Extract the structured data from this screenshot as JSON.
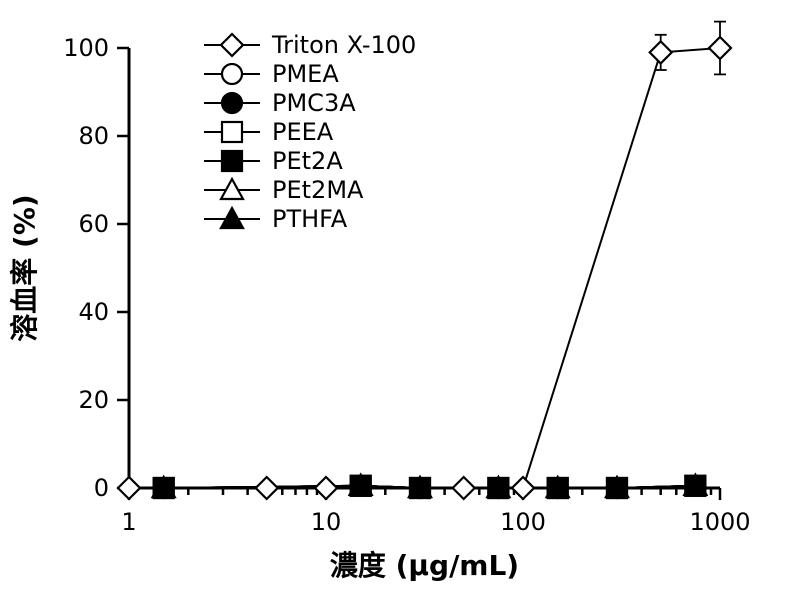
{
  "chart_data": {
    "type": "line",
    "xlabel": "濃度 (μg/mL)",
    "ylabel": "溶血率 (%)",
    "xscale": "log",
    "xlim": [
      1,
      1000
    ],
    "ylim": [
      0,
      100
    ],
    "x_ticks": [
      1,
      10,
      100,
      1000
    ],
    "y_ticks": [
      0,
      20,
      40,
      60,
      80,
      100
    ],
    "legend_position": "top-left",
    "grid": false,
    "series": [
      {
        "name": "Triton X-100",
        "marker": "diamond-open",
        "points": [
          {
            "x": 1,
            "y": 0
          },
          {
            "x": 5,
            "y": 0
          },
          {
            "x": 10,
            "y": 0
          },
          {
            "x": 50,
            "y": 0
          },
          {
            "x": 100,
            "y": 0
          },
          {
            "x": 500,
            "y": 99,
            "err": 4
          },
          {
            "x": 1000,
            "y": 100,
            "err": 6
          }
        ]
      },
      {
        "name": "PMEA",
        "marker": "circle-open",
        "points": [
          {
            "x": 1.5,
            "y": 0
          },
          {
            "x": 15,
            "y": 0.5
          },
          {
            "x": 30,
            "y": 0
          },
          {
            "x": 75,
            "y": 0
          },
          {
            "x": 150,
            "y": 0
          },
          {
            "x": 300,
            "y": 0
          },
          {
            "x": 750,
            "y": 0.5
          }
        ]
      },
      {
        "name": "PMC3A",
        "marker": "circle-filled",
        "points": [
          {
            "x": 1.5,
            "y": 0
          },
          {
            "x": 15,
            "y": 0.5
          },
          {
            "x": 30,
            "y": 0
          },
          {
            "x": 75,
            "y": 0
          },
          {
            "x": 150,
            "y": 0
          },
          {
            "x": 300,
            "y": 0
          },
          {
            "x": 750,
            "y": 0.5
          }
        ]
      },
      {
        "name": "PEEA",
        "marker": "square-open",
        "points": [
          {
            "x": 1.5,
            "y": 0
          },
          {
            "x": 15,
            "y": 0.5
          },
          {
            "x": 30,
            "y": 0
          },
          {
            "x": 75,
            "y": 0
          },
          {
            "x": 150,
            "y": 0
          },
          {
            "x": 300,
            "y": 0
          },
          {
            "x": 750,
            "y": 0.5
          }
        ]
      },
      {
        "name": "PEt2A",
        "marker": "square-filled",
        "points": [
          {
            "x": 1.5,
            "y": 0
          },
          {
            "x": 15,
            "y": 0.5
          },
          {
            "x": 30,
            "y": 0
          },
          {
            "x": 75,
            "y": 0
          },
          {
            "x": 150,
            "y": 0
          },
          {
            "x": 300,
            "y": 0
          },
          {
            "x": 750,
            "y": 0.5
          }
        ]
      },
      {
        "name": "PEt2MA",
        "marker": "triangle-open",
        "points": [
          {
            "x": 1.5,
            "y": 0
          },
          {
            "x": 15,
            "y": 0.5
          },
          {
            "x": 30,
            "y": 0
          },
          {
            "x": 75,
            "y": 0
          },
          {
            "x": 150,
            "y": 0
          },
          {
            "x": 300,
            "y": 0
          },
          {
            "x": 750,
            "y": 0.5
          }
        ]
      },
      {
        "name": "PTHFA",
        "marker": "triangle-filled",
        "points": [
          {
            "x": 1.5,
            "y": 0
          },
          {
            "x": 15,
            "y": 0.5
          },
          {
            "x": 30,
            "y": 0
          },
          {
            "x": 75,
            "y": 0
          },
          {
            "x": 150,
            "y": 0
          },
          {
            "x": 300,
            "y": 0
          },
          {
            "x": 750,
            "y": 0.5
          }
        ]
      }
    ]
  }
}
